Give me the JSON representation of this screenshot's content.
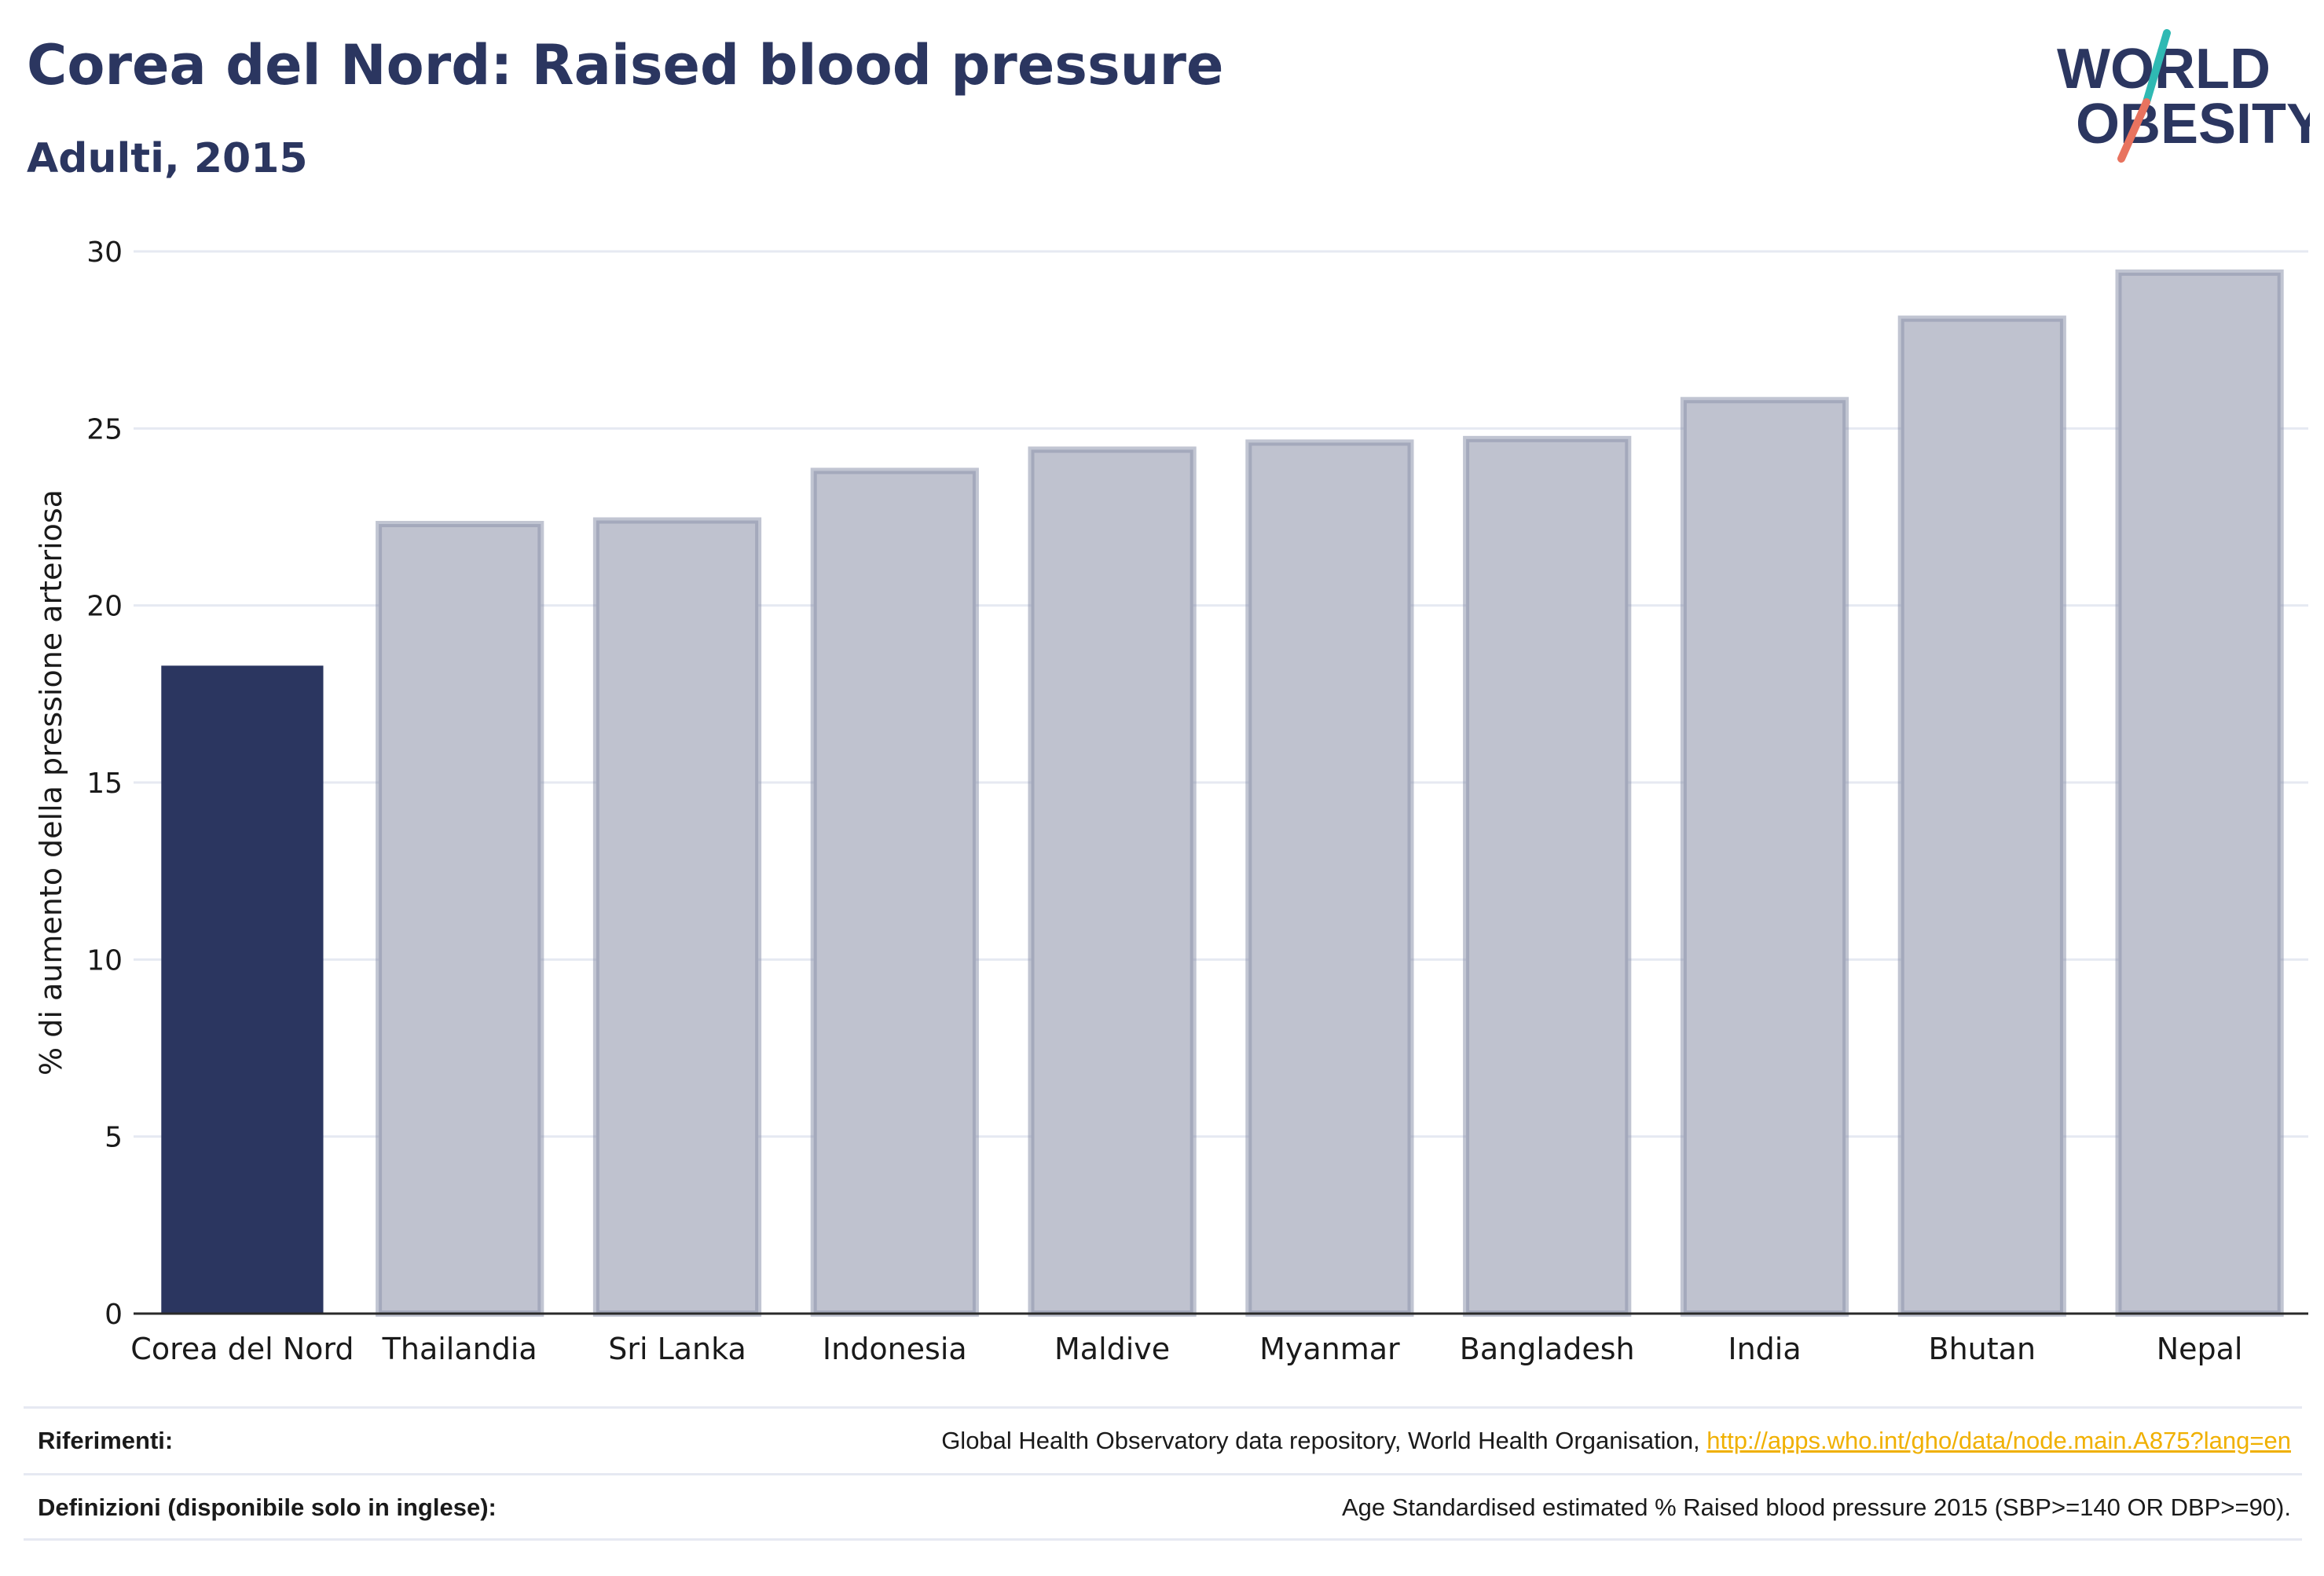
{
  "header": {
    "title": "Corea del Nord: Raised blood pressure",
    "subtitle": "Adulti, 2015"
  },
  "logo": {
    "line1": "WORLD",
    "line2": "OBESITY",
    "colors": {
      "text": "#2b3660",
      "slash_top": "#2fb9b3",
      "slash_bottom": "#e8735f"
    }
  },
  "chart_data": {
    "type": "bar",
    "categories": [
      "Corea del Nord",
      "Thailandia",
      "Sri Lanka",
      "Indonesia",
      "Maldive",
      "Myanmar",
      "Bangladesh",
      "India",
      "Bhutan",
      "Nepal"
    ],
    "values": [
      18.3,
      22.3,
      22.4,
      23.8,
      24.4,
      24.6,
      24.7,
      25.8,
      28.1,
      29.4
    ],
    "highlight": "Corea del Nord",
    "ylabel": "% di aumento della pressione arteriosa",
    "xlabel": "",
    "ylim": [
      0,
      30
    ],
    "yticks": [
      0,
      5,
      10,
      15,
      20,
      25,
      30
    ],
    "grid": true,
    "colors": {
      "highlight": "#2b3660",
      "other_fill": "#bfc2cf",
      "other_stroke": "#8e95ad",
      "grid": "#e6e9f2"
    }
  },
  "footer": {
    "references_label": "Riferimenti:",
    "references_text": "Global Health Observatory data repository, World Health Organisation, ",
    "references_link": "http://apps.who.int/gho/data/node.main.A875?lang=en",
    "definitions_label": "Definizioni (disponibile solo in inglese):",
    "definitions_text": "Age Standardised estimated % Raised blood pressure 2015 (SBP>=140 OR DBP>=90)."
  }
}
